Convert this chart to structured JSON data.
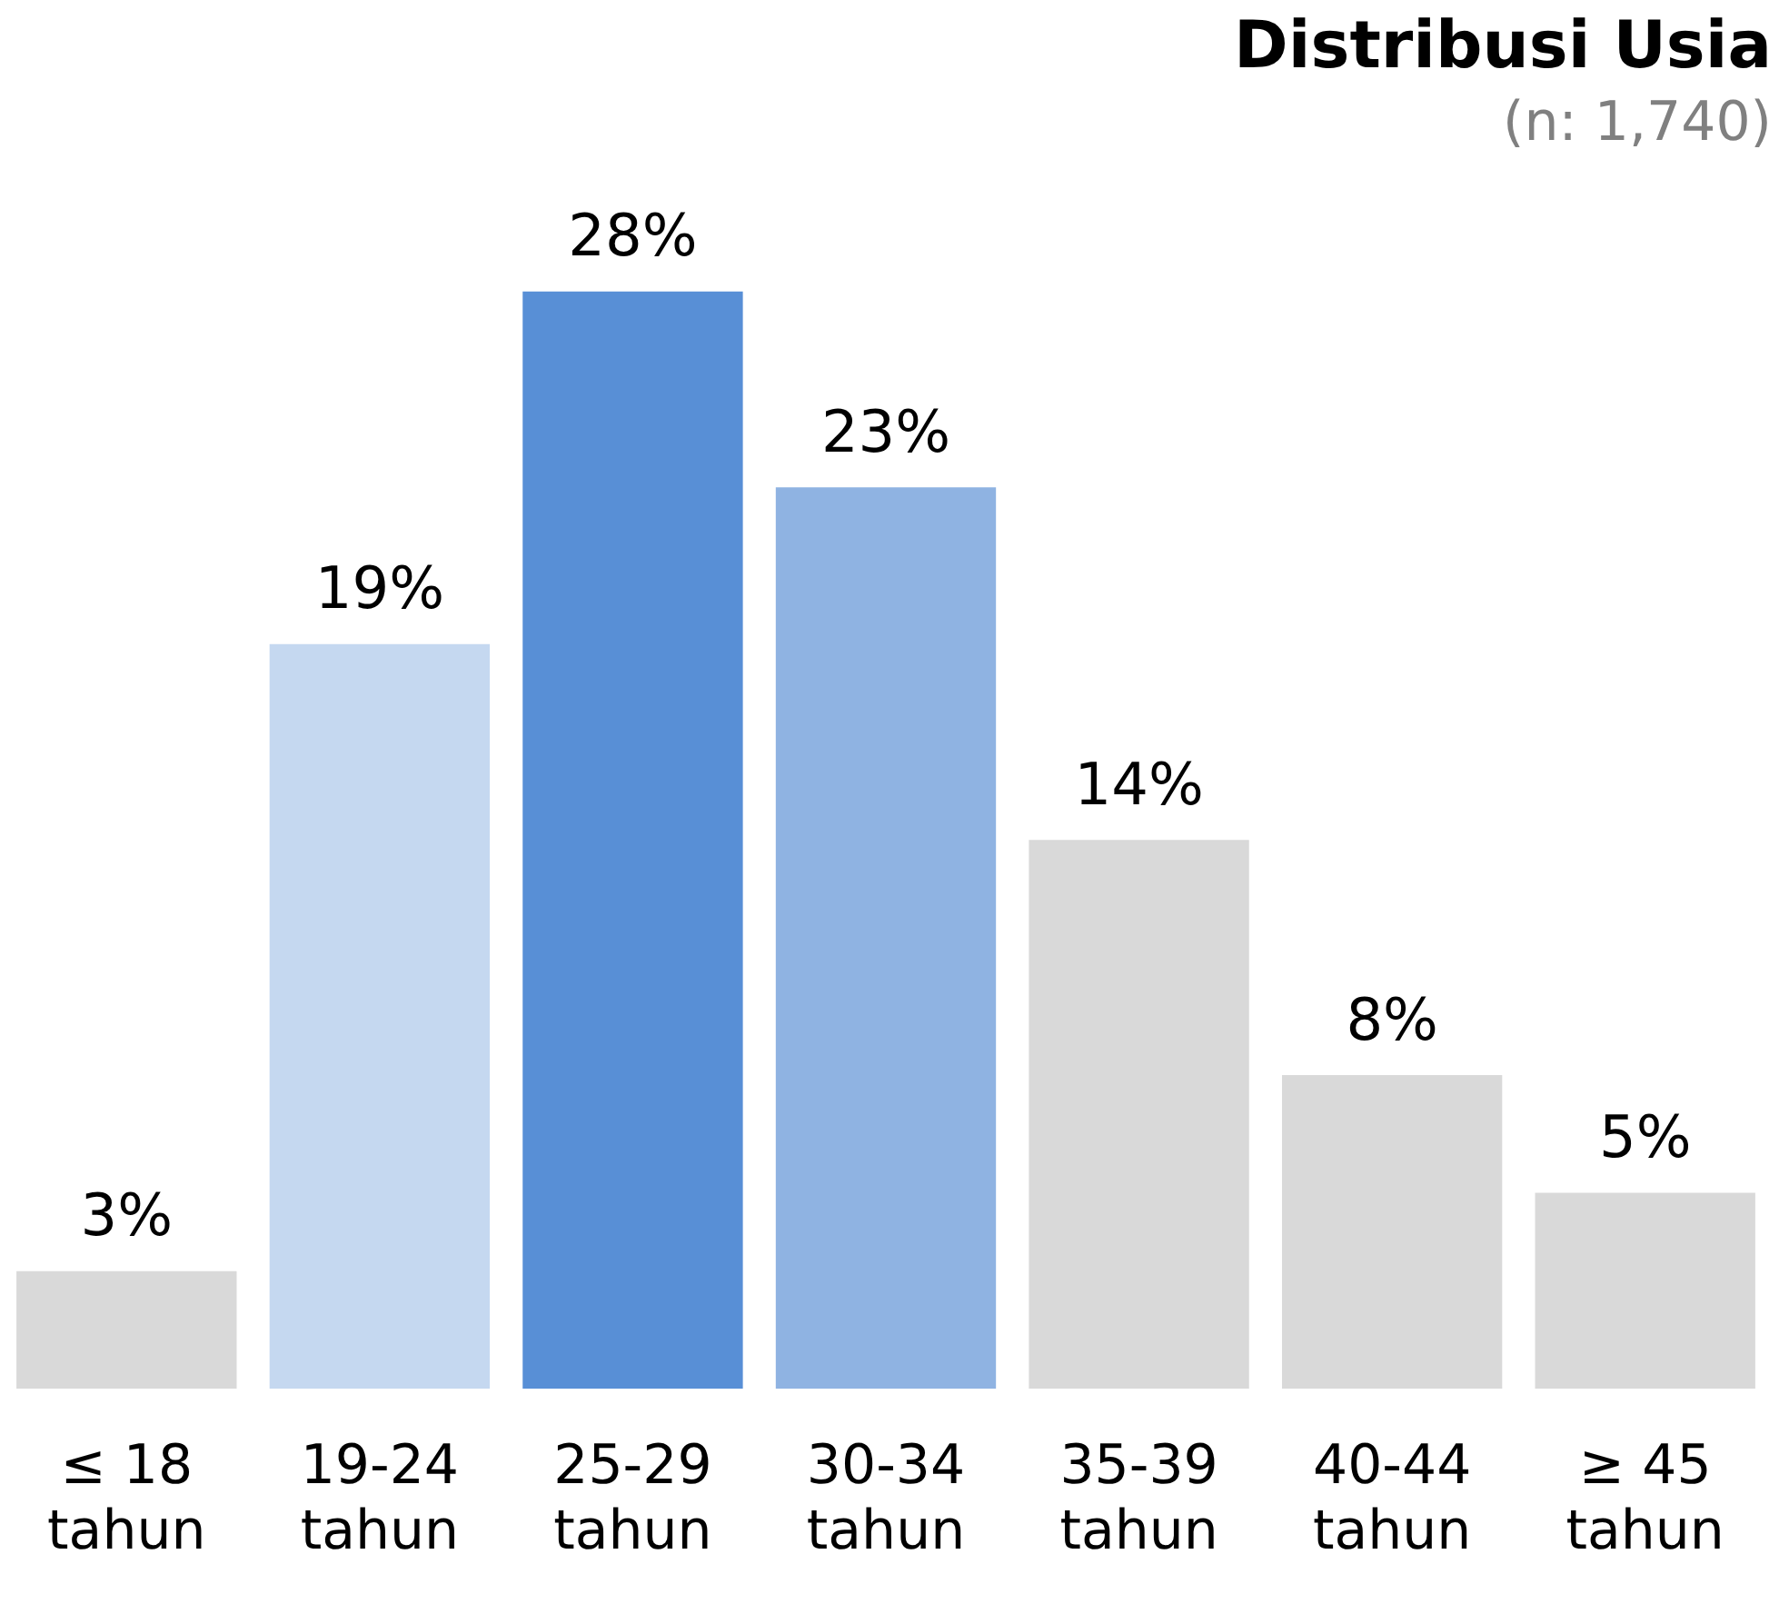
{
  "chart_data": {
    "type": "bar",
    "title": "Distribusi Usia",
    "subtitle": "(n: 1,740)",
    "categories": [
      "≤ 18\ntahun",
      "19-24\ntahun",
      "25-29\ntahun",
      "30-34\ntahun",
      "35-39\ntahun",
      "40-44\ntahun",
      "≥ 45\ntahun"
    ],
    "values": [
      3,
      19,
      28,
      23,
      14,
      8,
      5
    ],
    "colors": [
      "#d9d9d9",
      "#c5d8f0",
      "#588fd6",
      "#8fb3e2",
      "#d9d9d9",
      "#d9d9d9",
      "#d9d9d9"
    ],
    "value_labels": [
      "3%",
      "19%",
      "28%",
      "23%",
      "14%",
      "8%",
      "5%"
    ]
  }
}
